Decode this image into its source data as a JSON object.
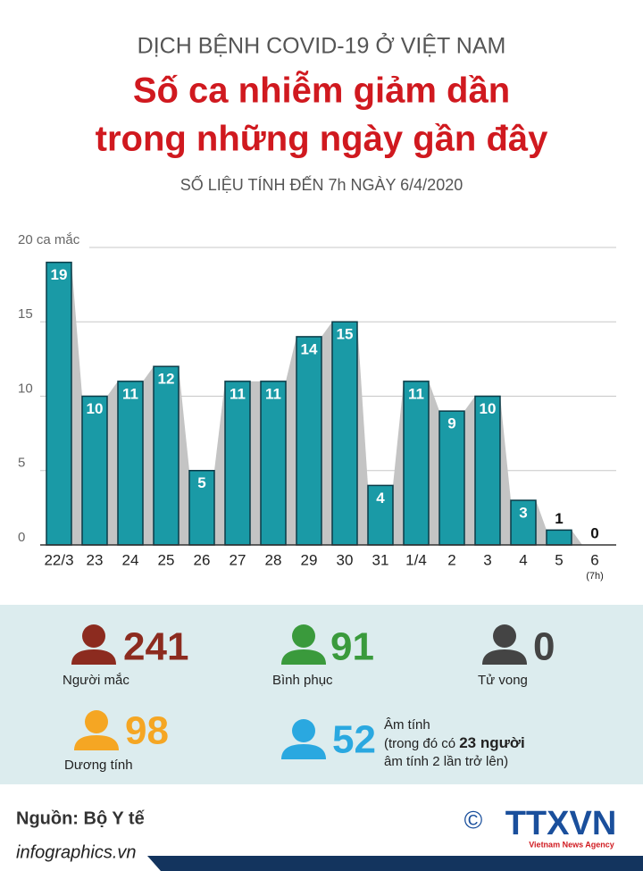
{
  "header": {
    "kicker": "DỊCH BỆNH COVID-19 Ở VIỆT NAM",
    "title_lines": [
      "Số ca nhiễm giảm dần",
      "trong những ngày gần đây"
    ],
    "subtitle": "SỐ LIỆU TÍNH ĐẾN 7h NGÀY 6/4/2020"
  },
  "chart_data": {
    "type": "bar",
    "categories": [
      "22/3",
      "23",
      "24",
      "25",
      "26",
      "27",
      "28",
      "29",
      "30",
      "31",
      "1/4",
      "2",
      "3",
      "4",
      "5",
      "6"
    ],
    "category_note": "(7h)",
    "values": [
      19,
      10,
      11,
      12,
      5,
      11,
      11,
      14,
      15,
      4,
      11,
      9,
      10,
      3,
      1,
      0
    ],
    "color": "#1a9aa6",
    "ylim": [
      0,
      20
    ],
    "yticks": [
      0,
      5,
      10,
      15,
      {
        "value": 20,
        "label": "20 ca mắc"
      }
    ],
    "grid": true
  },
  "stats": [
    {
      "value": "241",
      "label": "Người mắc",
      "color": "#8c2b1f"
    },
    {
      "value": "91",
      "label": "Bình phục",
      "color": "#3a9a3c"
    },
    {
      "value": "0",
      "label": "Tử vong",
      "color": "#444444"
    },
    {
      "value": "98",
      "label": "Dương tính",
      "color": "#f5a623"
    },
    {
      "value": "52",
      "label": "Âm tính",
      "color": "#2aa8e0",
      "note_parts": [
        "(trong đó có ",
        "23 người",
        "âm tính 2 lần trở lên)"
      ]
    }
  ],
  "footer": {
    "source": "Nguồn: Bộ Y tế",
    "site": "infographics.vn",
    "copyright": "©",
    "logo": "TTXVN",
    "agency": "Vietnam News Agency"
  }
}
